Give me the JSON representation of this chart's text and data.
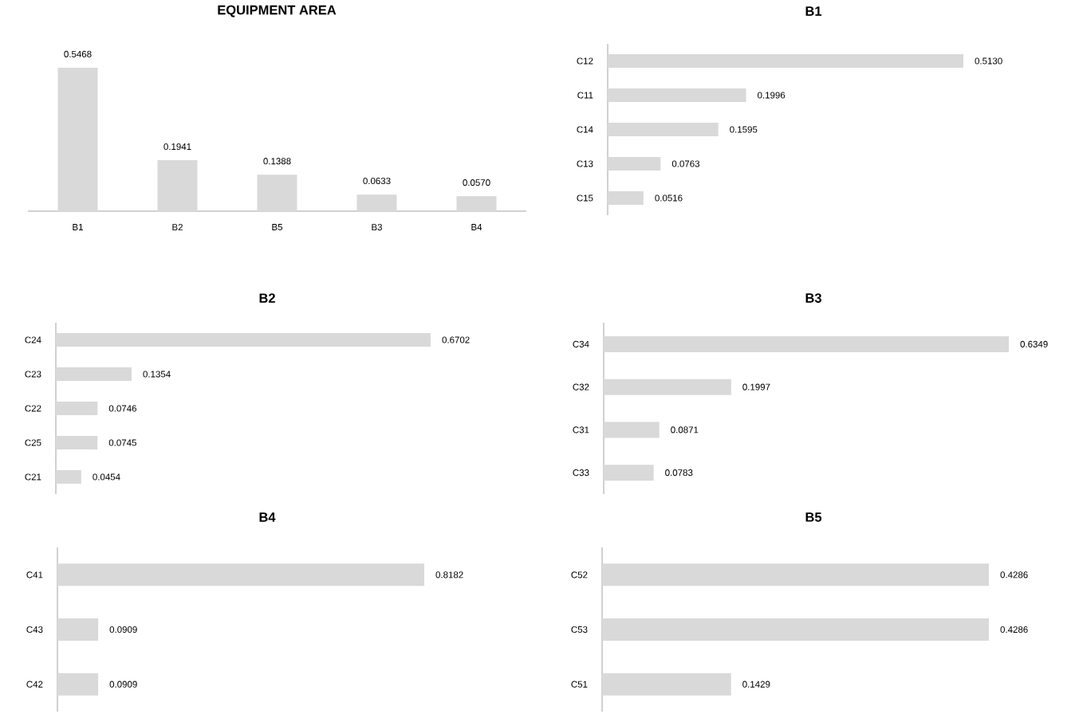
{
  "chart_data": [
    {
      "type": "bar",
      "title": "EQUIPMENT AREA",
      "categories": [
        "B1",
        "B2",
        "B5",
        "B3",
        "B4"
      ],
      "values": [
        0.5468,
        0.1941,
        0.1388,
        0.0633,
        0.057
      ],
      "value_labels": [
        "0.5468",
        "0.1941",
        "0.1388",
        "0.0633",
        "0.0570"
      ],
      "color": "#d9d9d9"
    },
    {
      "type": "bar",
      "orientation": "horizontal",
      "title": "B1",
      "categories": [
        "C12",
        "C11",
        "C14",
        "C13",
        "C15"
      ],
      "values": [
        0.513,
        0.1996,
        0.1595,
        0.0763,
        0.0516
      ],
      "value_labels": [
        "0.5130",
        "0.1996",
        "0.1595",
        "0.0763",
        "0.0516"
      ],
      "color": "#d9d9d9"
    },
    {
      "type": "bar",
      "orientation": "horizontal",
      "title": "B2",
      "categories": [
        "C24",
        "C23",
        "C22",
        "C25",
        "C21"
      ],
      "values": [
        0.6702,
        0.1354,
        0.0746,
        0.0745,
        0.0454
      ],
      "value_labels": [
        "0.6702",
        "0.1354",
        "0.0746",
        "0.0745",
        "0.0454"
      ],
      "color": "#d9d9d9"
    },
    {
      "type": "bar",
      "orientation": "horizontal",
      "title": "B3",
      "categories": [
        "C34",
        "C32",
        "C31",
        "C33"
      ],
      "values": [
        0.6349,
        0.1997,
        0.0871,
        0.0783
      ],
      "value_labels": [
        "0.6349",
        "0.1997",
        "0.0871",
        "0.0783"
      ],
      "color": "#d9d9d9"
    },
    {
      "type": "bar",
      "orientation": "horizontal",
      "title": "B4",
      "categories": [
        "C41",
        "C43",
        "C42"
      ],
      "values": [
        0.8182,
        0.0909,
        0.0909
      ],
      "value_labels": [
        "0.8182",
        "0.0909",
        "0.0909"
      ],
      "color": "#d9d9d9"
    },
    {
      "type": "bar",
      "orientation": "horizontal",
      "title": "B5",
      "categories": [
        "C52",
        "C53",
        "C51"
      ],
      "values": [
        0.4286,
        0.4286,
        0.1429
      ],
      "value_labels": [
        "0.4286",
        "0.4286",
        "0.1429"
      ],
      "color": "#d9d9d9"
    }
  ]
}
